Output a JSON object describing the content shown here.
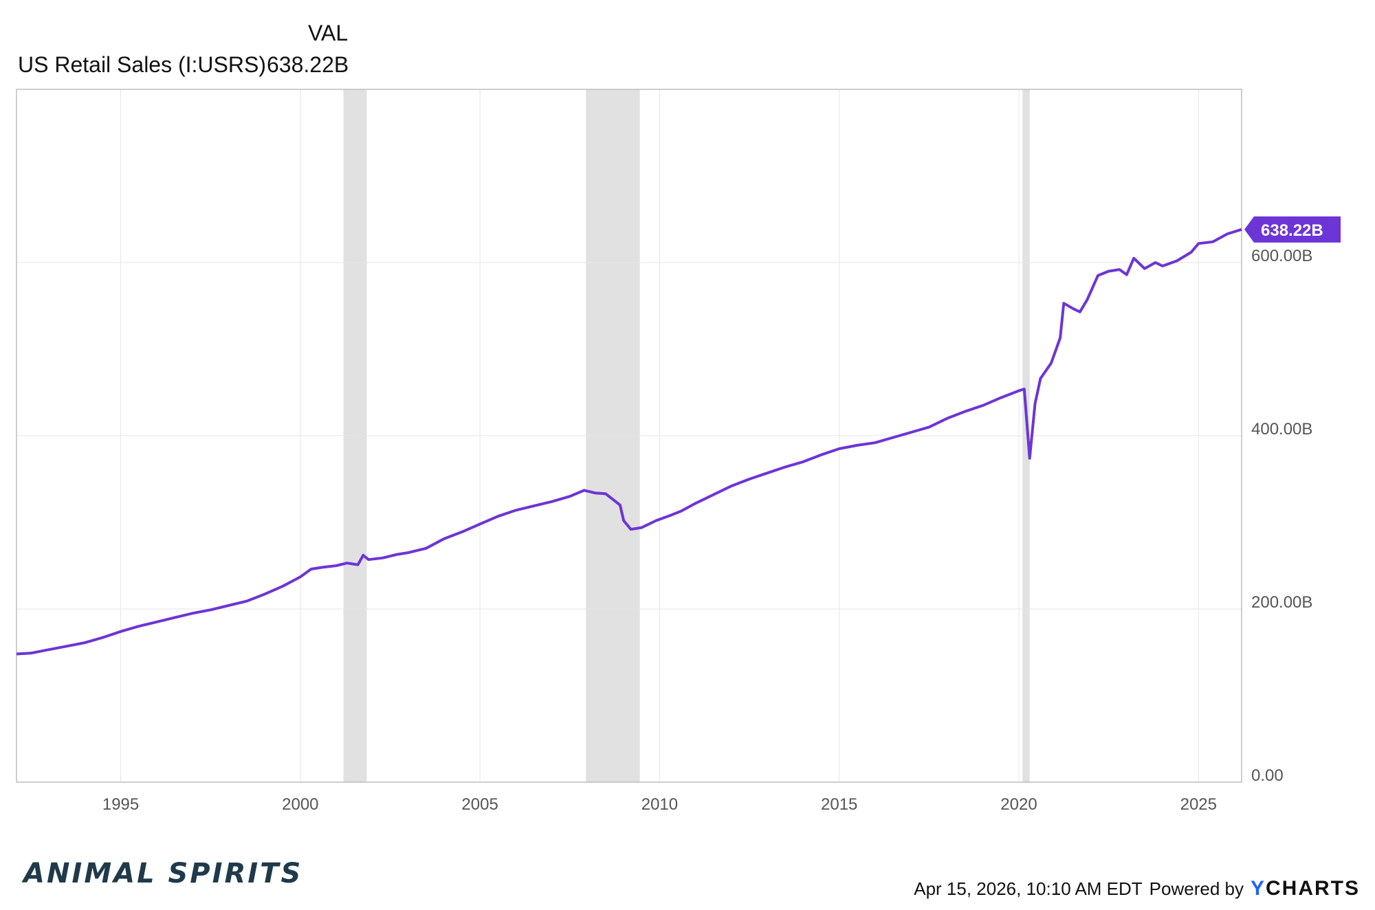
{
  "legend": {
    "column_header": "VAL",
    "series_name": "US Retail Sales (I:USRS)",
    "series_value": "638.22B"
  },
  "footer": {
    "timestamp": "Apr 15, 2026, 10:10 AM EDT",
    "powered_by": "Powered by",
    "brand_y": "Y",
    "brand_rest": "CHARTS"
  },
  "logo": {
    "text": "ANIMAL SPIRITS"
  },
  "colors": {
    "line": "#6c35d6",
    "recession": "#e1e1e1",
    "grid": "#e6e6e6",
    "axis": "#bdbdbd"
  },
  "chart_data": {
    "type": "line",
    "title": "",
    "xlabel": "",
    "ylabel": "",
    "xlim": [
      1992.1,
      2026.2
    ],
    "ylim": [
      0,
      800
    ],
    "grid": true,
    "x_ticks": [
      {
        "value": 1995,
        "label": "1995"
      },
      {
        "value": 2000,
        "label": "2000"
      },
      {
        "value": 2005,
        "label": "2005"
      },
      {
        "value": 2010,
        "label": "2010"
      },
      {
        "value": 2015,
        "label": "2015"
      },
      {
        "value": 2020,
        "label": "2020"
      },
      {
        "value": 2025,
        "label": "2025"
      }
    ],
    "y_ticks": [
      {
        "value": 0,
        "label": "0.00"
      },
      {
        "value": 200,
        "label": "200.00B"
      },
      {
        "value": 400,
        "label": "400.00B"
      },
      {
        "value": 600,
        "label": "600.00B"
      }
    ],
    "recessions": [
      [
        2001.2,
        2001.85
      ],
      [
        2007.95,
        2009.45
      ],
      [
        2020.1,
        2020.3
      ]
    ],
    "last_value_label": "638.22B",
    "series": [
      {
        "name": "US Retail Sales (I:USRS)",
        "points": [
          [
            1992.1,
            148
          ],
          [
            1992.5,
            149
          ],
          [
            1993.0,
            153
          ],
          [
            1993.5,
            157
          ],
          [
            1994.0,
            161
          ],
          [
            1994.5,
            167
          ],
          [
            1995.0,
            174
          ],
          [
            1995.5,
            180
          ],
          [
            1996.0,
            185
          ],
          [
            1996.5,
            190
          ],
          [
            1997.0,
            195
          ],
          [
            1997.5,
            199
          ],
          [
            1998.0,
            204
          ],
          [
            1998.5,
            209
          ],
          [
            1999.0,
            217
          ],
          [
            1999.5,
            226
          ],
          [
            2000.0,
            237
          ],
          [
            2000.3,
            246
          ],
          [
            2000.6,
            248
          ],
          [
            2001.0,
            250
          ],
          [
            2001.3,
            253
          ],
          [
            2001.6,
            251
          ],
          [
            2001.75,
            262
          ],
          [
            2001.9,
            257
          ],
          [
            2002.3,
            259
          ],
          [
            2002.7,
            263
          ],
          [
            2003.0,
            265
          ],
          [
            2003.5,
            270
          ],
          [
            2004.0,
            281
          ],
          [
            2004.5,
            289
          ],
          [
            2005.0,
            298
          ],
          [
            2005.5,
            307
          ],
          [
            2006.0,
            314
          ],
          [
            2006.5,
            319
          ],
          [
            2007.0,
            324
          ],
          [
            2007.5,
            330
          ],
          [
            2007.9,
            337
          ],
          [
            2008.2,
            334
          ],
          [
            2008.5,
            333
          ],
          [
            2008.9,
            320
          ],
          [
            2009.0,
            302
          ],
          [
            2009.2,
            292
          ],
          [
            2009.5,
            294
          ],
          [
            2009.9,
            302
          ],
          [
            2010.3,
            308
          ],
          [
            2010.6,
            313
          ],
          [
            2011.0,
            322
          ],
          [
            2011.5,
            332
          ],
          [
            2012.0,
            342
          ],
          [
            2012.5,
            350
          ],
          [
            2013.0,
            357
          ],
          [
            2013.5,
            364
          ],
          [
            2014.0,
            370
          ],
          [
            2014.5,
            378
          ],
          [
            2015.0,
            385
          ],
          [
            2015.5,
            389
          ],
          [
            2016.0,
            392
          ],
          [
            2016.5,
            398
          ],
          [
            2017.0,
            404
          ],
          [
            2017.5,
            410
          ],
          [
            2018.0,
            420
          ],
          [
            2018.5,
            428
          ],
          [
            2019.0,
            435
          ],
          [
            2019.5,
            444
          ],
          [
            2020.0,
            452
          ],
          [
            2020.15,
            454
          ],
          [
            2020.3,
            374
          ],
          [
            2020.45,
            437
          ],
          [
            2020.6,
            466
          ],
          [
            2020.9,
            484
          ],
          [
            2021.15,
            513
          ],
          [
            2021.25,
            553
          ],
          [
            2021.5,
            547
          ],
          [
            2021.7,
            543
          ],
          [
            2021.9,
            557
          ],
          [
            2022.2,
            585
          ],
          [
            2022.5,
            590
          ],
          [
            2022.8,
            592
          ],
          [
            2023.0,
            586
          ],
          [
            2023.2,
            605
          ],
          [
            2023.5,
            593
          ],
          [
            2023.8,
            600
          ],
          [
            2024.0,
            596
          ],
          [
            2024.4,
            602
          ],
          [
            2024.8,
            612
          ],
          [
            2025.0,
            622
          ],
          [
            2025.4,
            624
          ],
          [
            2025.8,
            633
          ],
          [
            2026.2,
            638.22
          ]
        ]
      }
    ]
  }
}
